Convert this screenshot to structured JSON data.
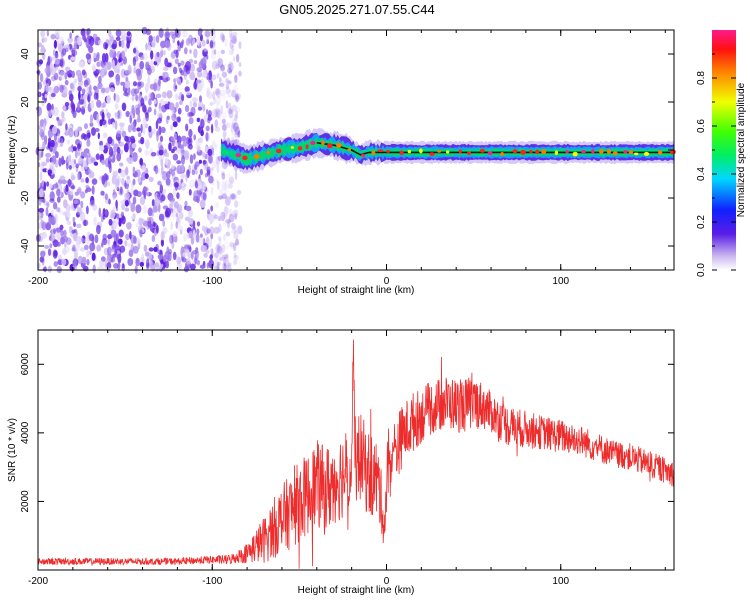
{
  "title": "GN05.2025.271.07.55.C44",
  "colors": {
    "snr_line": "#ee2c2c",
    "axis": "#000000",
    "background": "#ffffff"
  },
  "chart_data": [
    {
      "type": "heatmap",
      "xlabel": "Height of straight line (km)",
      "ylabel": "Frequency (Hz)",
      "xlim": [
        -200,
        165
      ],
      "ylim": [
        -50,
        50
      ],
      "xticks": [
        -200,
        -100,
        0,
        100
      ],
      "xtick_labels": [
        "-200",
        "-100",
        "0",
        "100"
      ],
      "yticks": [
        -40,
        -20,
        0,
        20,
        40
      ],
      "ytick_labels": [
        "-40",
        "-20",
        "0",
        "20",
        "40"
      ],
      "noise_region_end_km": -88,
      "signal_trace": {
        "x": [
          -95,
          -88,
          -80,
          -70,
          -60,
          -50,
          -40,
          -30,
          -20,
          -15,
          -10,
          0,
          20,
          40,
          60,
          80,
          100,
          120,
          140,
          165
        ],
        "y": [
          0,
          -2,
          -4,
          -2,
          0,
          1,
          3,
          2,
          0,
          -2,
          -1,
          -1,
          -1,
          -1,
          -1,
          -1,
          -1,
          -1,
          -1,
          -1
        ]
      },
      "colorbar": {
        "label": "Normalized spectral amplitude",
        "range": [
          0,
          1
        ],
        "ticks": [
          0,
          0.2,
          0.4,
          0.6,
          0.8
        ],
        "tick_labels": [
          "0.0",
          "0.2",
          "0.4",
          "0.6",
          "0.8"
        ]
      }
    },
    {
      "type": "line",
      "xlabel": "Height of straight line (km)",
      "ylabel": "SNR (10 * v/v)",
      "xlim": [
        -200,
        165
      ],
      "ylim": [
        0,
        7000
      ],
      "xticks": [
        -200,
        -100,
        0,
        100
      ],
      "xtick_labels": [
        "-200",
        "-100",
        "0",
        "100"
      ],
      "yticks": [
        2000,
        4000,
        6000
      ],
      "ytick_labels": [
        "2000",
        "4000",
        "6000"
      ],
      "series": [
        {
          "name": "SNR",
          "x": [
            -200,
            -180,
            -160,
            -140,
            -120,
            -100,
            -90,
            -85,
            -80,
            -75,
            -70,
            -65,
            -60,
            -55,
            -50,
            -45,
            -40,
            -35,
            -30,
            -25,
            -20,
            -19,
            -18,
            -15,
            -10,
            -5,
            -3,
            -1,
            0,
            5,
            10,
            15,
            20,
            25,
            30,
            35,
            40,
            45,
            50,
            55,
            60,
            65,
            70,
            80,
            90,
            100,
            110,
            120,
            130,
            140,
            150,
            160,
            165
          ],
          "y": [
            250,
            250,
            250,
            250,
            250,
            300,
            300,
            400,
            500,
            700,
            900,
            1200,
            1500,
            1700,
            2000,
            2200,
            2500,
            2300,
            2600,
            2800,
            3000,
            6800,
            3200,
            3300,
            2800,
            2600,
            2000,
            1200,
            2800,
            3500,
            4000,
            4300,
            4500,
            4700,
            4800,
            4900,
            4800,
            4800,
            4900,
            4800,
            4600,
            4400,
            4200,
            4100,
            4000,
            3900,
            3800,
            3600,
            3400,
            3300,
            3100,
            2900,
            2800
          ],
          "noise_amplitude": [
            100,
            100,
            100,
            100,
            100,
            120,
            150,
            200,
            300,
            500,
            700,
            900,
            1000,
            1100,
            1200,
            1200,
            1300,
            1300,
            1300,
            1300,
            1300,
            300,
            1300,
            1300,
            1300,
            1200,
            900,
            700,
            1000,
            1000,
            900,
            900,
            800,
            800,
            800,
            800,
            800,
            800,
            800,
            700,
            600,
            600,
            600,
            550,
            500,
            500,
            450,
            450,
            400,
            400,
            400,
            380,
            380
          ]
        }
      ]
    }
  ]
}
